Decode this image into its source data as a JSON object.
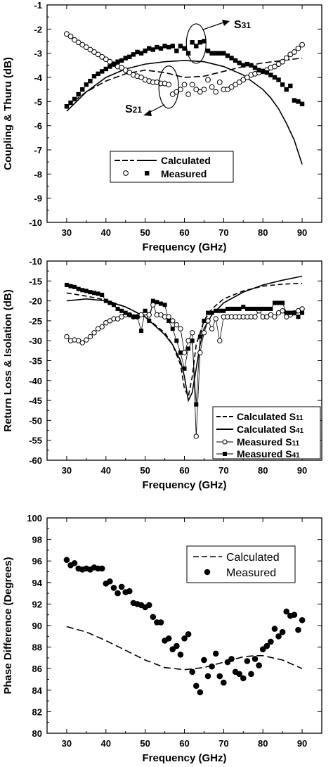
{
  "chart_data": [
    {
      "type": "scatter",
      "xlabel": "Frequency (GHz)",
      "ylabel": "Coupling & Thuru (dB)",
      "xlim": [
        25,
        95
      ],
      "ylim": [
        -10,
        -1
      ],
      "xticks": [
        30,
        40,
        50,
        60,
        70,
        80,
        90
      ],
      "yticks": [
        -10,
        -9,
        -8,
        -7,
        -6,
        -5,
        -4,
        -3,
        -2,
        -1
      ],
      "legend": {
        "position": "bottom-center",
        "entries": [
          "Calculated",
          "Measured"
        ]
      },
      "annotations": [
        {
          "main": "S",
          "sub": "31",
          "ellipse_x": 63,
          "ellipse_y": -2.6
        },
        {
          "main": "S",
          "sub": "21",
          "ellipse_x": 56,
          "ellipse_y": -4.4
        }
      ],
      "series": [
        {
          "style": "dashed",
          "x": [
            30,
            35,
            40,
            45,
            50,
            55,
            60,
            65,
            70,
            75,
            80,
            85,
            90
          ],
          "y": [
            -5.2,
            -4.6,
            -4.15,
            -3.85,
            -3.7,
            -3.8,
            -4.0,
            -3.95,
            -3.75,
            -3.55,
            -3.4,
            -3.3,
            -3.2
          ]
        },
        {
          "style": "solid",
          "x": [
            30,
            35,
            40,
            45,
            50,
            55,
            60,
            65,
            70,
            75,
            80,
            82,
            84,
            86,
            88,
            90
          ],
          "y": [
            -5.4,
            -4.6,
            -4.0,
            -3.65,
            -3.45,
            -3.35,
            -3.3,
            -3.35,
            -3.55,
            -3.9,
            -4.5,
            -4.85,
            -5.3,
            -5.9,
            -6.6,
            -7.6
          ]
        },
        {
          "marker": "circle-open",
          "x": [
            30,
            31,
            32,
            33,
            34,
            35,
            36,
            37,
            38,
            39,
            40,
            41,
            42,
            43,
            44,
            45,
            46,
            47,
            48,
            49,
            50,
            51,
            52,
            53,
            54,
            55,
            56,
            57,
            58,
            59,
            60,
            61,
            62,
            63,
            64,
            65,
            66,
            67,
            68,
            69,
            70,
            71,
            72,
            73,
            74,
            75,
            76,
            77,
            78,
            79,
            80,
            81,
            82,
            83,
            84,
            85,
            86,
            87,
            88,
            89,
            90
          ],
          "y": [
            -2.2,
            -2.3,
            -2.45,
            -2.55,
            -2.65,
            -2.75,
            -2.85,
            -2.95,
            -3.05,
            -3.15,
            -3.25,
            -3.35,
            -3.45,
            -3.55,
            -3.6,
            -3.7,
            -3.8,
            -3.9,
            -3.95,
            -4.0,
            -4.1,
            -4.15,
            -4.2,
            -4.2,
            -4.25,
            -4.25,
            -4.3,
            -4.7,
            -4.6,
            -4.5,
            -4.3,
            -4.7,
            -4.3,
            -4.5,
            -4.6,
            -4.5,
            -4.1,
            -4.4,
            -4.6,
            -4.2,
            -4.5,
            -4.5,
            -4.4,
            -4.3,
            -4.2,
            -4.1,
            -4.0,
            -3.9,
            -3.85,
            -3.8,
            -3.75,
            -3.7,
            -3.6,
            -3.55,
            -3.45,
            -3.35,
            -3.2,
            -3.05,
            -2.95,
            -2.8,
            -2.65
          ]
        },
        {
          "marker": "square-filled",
          "x": [
            30,
            31,
            32,
            33,
            34,
            35,
            36,
            37,
            38,
            39,
            40,
            41,
            42,
            43,
            44,
            45,
            46,
            47,
            48,
            49,
            50,
            51,
            52,
            53,
            54,
            55,
            56,
            57,
            58,
            59,
            60,
            61,
            62,
            63,
            64,
            65,
            66,
            67,
            68,
            69,
            70,
            71,
            72,
            73,
            74,
            75,
            76,
            77,
            78,
            79,
            80,
            81,
            82,
            83,
            84,
            85,
            86,
            87,
            88,
            89,
            90
          ],
          "y": [
            -5.2,
            -5.05,
            -4.9,
            -4.7,
            -4.5,
            -4.3,
            -4.15,
            -3.95,
            -3.85,
            -3.75,
            -3.65,
            -3.55,
            -3.45,
            -3.35,
            -3.3,
            -3.2,
            -3.15,
            -3.05,
            -2.95,
            -3.0,
            -2.9,
            -2.8,
            -2.85,
            -2.75,
            -2.8,
            -2.7,
            -2.75,
            -2.7,
            -2.9,
            -2.7,
            -2.8,
            -3.0,
            -2.55,
            -2.7,
            -2.55,
            -2.5,
            -2.9,
            -3.0,
            -3.0,
            -3.0,
            -3.0,
            -3.1,
            -3.2,
            -3.3,
            -3.4,
            -3.5,
            -3.45,
            -3.5,
            -3.6,
            -3.7,
            -3.75,
            -3.8,
            -3.9,
            -4.0,
            -4.1,
            -4.3,
            -4.5,
            -4.35,
            -4.95,
            -5.0,
            -5.1
          ]
        }
      ]
    },
    {
      "type": "line",
      "xlabel": "Frequency (GHz)",
      "ylabel": "Return Loss & Isolation (dB)",
      "xlim": [
        25,
        95
      ],
      "ylim": [
        -60,
        -10
      ],
      "xticks": [
        30,
        40,
        50,
        60,
        70,
        80,
        90
      ],
      "yticks": [
        -60,
        -55,
        -50,
        -45,
        -40,
        -35,
        -30,
        -25,
        -20,
        -15,
        -10
      ],
      "legend": {
        "position": "bottom-right",
        "entries": [
          {
            "main": "Calculated S",
            "sub": "11"
          },
          {
            "main": "Calculated S",
            "sub": "41"
          },
          {
            "main": "Measured S",
            "sub": "11"
          },
          {
            "main": "Measured S",
            "sub": "41"
          }
        ]
      },
      "series": [
        {
          "style": "dashed",
          "x": [
            30,
            35,
            40,
            45,
            50,
            55,
            57,
            59,
            60,
            61,
            62,
            63,
            65,
            67,
            70,
            75,
            80,
            85,
            90
          ],
          "y": [
            -18,
            -18.8,
            -19.8,
            -21.5,
            -24,
            -28,
            -31,
            -36,
            -42,
            -44,
            -39,
            -31,
            -25,
            -22,
            -19.5,
            -17.5,
            -16.3,
            -15.8,
            -15.6
          ]
        },
        {
          "style": "solid",
          "x": [
            30,
            35,
            40,
            45,
            50,
            55,
            57,
            59,
            60,
            61,
            62,
            63,
            64,
            65,
            67,
            70,
            75,
            80,
            85,
            90
          ],
          "y": [
            -20,
            -19.5,
            -20,
            -21.5,
            -24,
            -28.5,
            -31,
            -35,
            -39,
            -45,
            -43,
            -37,
            -31,
            -27,
            -23.5,
            -20.5,
            -17.8,
            -16,
            -14.8,
            -13.8
          ]
        },
        {
          "marker": "circle-open",
          "x": [
            30,
            31,
            32,
            33,
            34,
            35,
            36,
            37,
            38,
            39,
            40,
            41,
            42,
            43,
            44,
            45,
            46,
            47,
            48,
            49,
            50,
            51,
            52,
            53,
            54,
            55,
            56,
            57,
            58,
            59,
            60,
            61,
            62,
            63,
            64,
            65,
            66,
            67,
            68,
            69,
            70,
            71,
            72,
            73,
            74,
            75,
            76,
            77,
            78,
            79,
            80,
            81,
            82,
            83,
            84,
            85,
            86,
            87,
            88,
            89,
            90
          ],
          "y": [
            -29,
            -30,
            -29.8,
            -30,
            -30.5,
            -29.8,
            -29,
            -28,
            -27,
            -26.5,
            -25.5,
            -25,
            -24.5,
            -24.5,
            -24,
            -23.5,
            -23.5,
            -24,
            -24,
            -23.5,
            -23,
            -23.5,
            -21,
            -23.5,
            -23.5,
            -24,
            -24,
            -25,
            -26,
            -27,
            -33,
            -30,
            -28,
            -54,
            -33,
            -28,
            -25,
            -27,
            -24.5,
            -30,
            -24,
            -24,
            -24,
            -24,
            -24,
            -24,
            -24,
            -24,
            -24,
            -22.5,
            -24,
            -24,
            -23.5,
            -24,
            -23,
            -22.5,
            -24,
            -23.5,
            -23,
            -22.5,
            -22
          ]
        },
        {
          "marker": "square-filled",
          "x": [
            30,
            31,
            32,
            33,
            34,
            35,
            36,
            37,
            38,
            39,
            40,
            41,
            42,
            43,
            44,
            45,
            46,
            47,
            48,
            49,
            50,
            51,
            52,
            53,
            54,
            55,
            56,
            57,
            58,
            59,
            60,
            61,
            62,
            63,
            64,
            65,
            66,
            67,
            68,
            69,
            70,
            71,
            72,
            73,
            74,
            75,
            76,
            77,
            78,
            79,
            80,
            81,
            82,
            83,
            84,
            85,
            86,
            87,
            88,
            89,
            90
          ],
          "y": [
            -16,
            -16.3,
            -16.5,
            -17,
            -17.3,
            -17.5,
            -17.8,
            -18,
            -18.2,
            -18.5,
            -20,
            -20.5,
            -21,
            -22,
            -22.5,
            -23,
            -23.5,
            -24,
            -24,
            -27.5,
            -22.5,
            -25,
            -20,
            -20.3,
            -20.7,
            -21,
            -25,
            -27,
            -30,
            -33,
            -37,
            -32,
            -30,
            -46,
            -29,
            -25,
            -23,
            -23,
            -22.5,
            -22.5,
            -22.5,
            -22,
            -22,
            -22,
            -22,
            -21.5,
            -22,
            -22,
            -22,
            -22,
            -22,
            -22,
            -22,
            -20.5,
            -20.5,
            -20.5,
            -23,
            -23,
            -23,
            -24,
            -23
          ]
        }
      ]
    },
    {
      "type": "scatter",
      "xlabel": "Frequency (GHz)",
      "ylabel": "Phase Difference (Degrees)",
      "xlim": [
        25,
        95
      ],
      "ylim": [
        80,
        100
      ],
      "xticks": [
        30,
        40,
        50,
        60,
        70,
        80,
        90
      ],
      "yticks": [
        80,
        82,
        84,
        86,
        88,
        90,
        92,
        94,
        96,
        98,
        100
      ],
      "legend": {
        "position": "top-right",
        "entries": [
          "Calculated",
          "Measured"
        ]
      },
      "series": [
        {
          "style": "dashed",
          "x": [
            30,
            35,
            40,
            45,
            50,
            55,
            60,
            65,
            70,
            75,
            78,
            80,
            85,
            90
          ],
          "y": [
            89.9,
            89.4,
            88.6,
            87.7,
            86.8,
            86.1,
            85.9,
            86.1,
            86.6,
            87.1,
            87.2,
            87.2,
            86.8,
            86.0
          ]
        },
        {
          "marker": "circle-filled",
          "x": [
            30,
            31,
            32,
            33,
            34,
            35,
            36,
            37,
            38,
            39,
            40,
            41,
            42,
            43,
            44,
            45,
            46,
            47,
            48,
            49,
            50,
            51,
            52,
            53,
            54,
            55,
            56,
            57,
            58,
            59,
            60,
            61,
            62,
            63,
            64,
            65,
            66,
            67,
            68,
            69,
            70,
            71,
            72,
            73,
            74,
            75,
            76,
            77,
            78,
            79,
            80,
            81,
            82,
            83,
            84,
            85,
            86,
            87,
            88,
            89,
            90
          ],
          "y": [
            96.1,
            95.6,
            95.8,
            95.3,
            95.2,
            95.3,
            95.2,
            95.4,
            95.3,
            95.3,
            93.9,
            94.1,
            93.5,
            93.0,
            93.6,
            93.1,
            93.2,
            92.1,
            92.0,
            91.9,
            91.7,
            91.9,
            90.8,
            90.3,
            90.3,
            88.6,
            88.8,
            87.8,
            88.1,
            87.3,
            88.8,
            89.2,
            85.7,
            84.4,
            83.8,
            86.8,
            85.3,
            86.2,
            87.4,
            85.3,
            84.7,
            86.6,
            86.9,
            85.7,
            85.5,
            85.1,
            86.7,
            85.5,
            86.9,
            86.3,
            87.8,
            88.1,
            88.5,
            89.7,
            89.0,
            89.4,
            91.3,
            90.9,
            91.0,
            89.6,
            90.5
          ]
        }
      ]
    }
  ]
}
